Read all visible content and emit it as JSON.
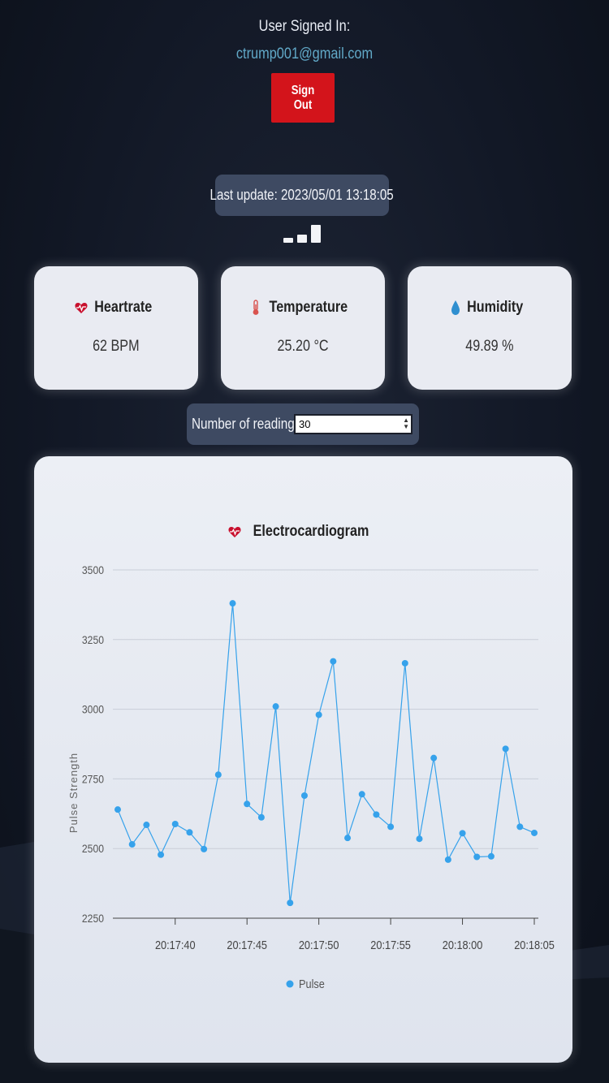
{
  "header": {
    "signed_in_label": "User Signed In:",
    "email": "ctrump001@gmail.com",
    "sign_out_label": "Sign Out"
  },
  "status": {
    "last_update": "Last update: 2023/05/01 13:18:05",
    "signal_icon": "signal-strength-icon"
  },
  "cards": [
    {
      "title": "Heartrate",
      "value": "62 BPM",
      "icon": "heart-pulse-icon",
      "icon_color": "#c8102e"
    },
    {
      "title": "Temperature",
      "value": "25.20 °C",
      "icon": "thermometer-icon",
      "icon_color": "#d9534f"
    },
    {
      "title": "Humidity",
      "value": "49.89 %",
      "icon": "water-drop-icon",
      "icon_color": "#2f8fd0"
    }
  ],
  "readings": {
    "label": "Number of readings:",
    "value": "30"
  },
  "chart_title": "Electrocardiogram",
  "chart_data": {
    "type": "line",
    "title": "Electrocardiogram",
    "ylabel": "Pulse Strength",
    "xlabel": "",
    "ylim": [
      2250,
      3500
    ],
    "yticks": [
      2250,
      2500,
      2750,
      3000,
      3250,
      3500
    ],
    "x_tick_labels": [
      "20:17:40",
      "20:17:45",
      "20:17:50",
      "20:17:55",
      "20:18:00",
      "20:18:05"
    ],
    "x_tick_seconds": [
      40,
      45,
      50,
      55,
      60,
      65
    ],
    "x_start_second": 36,
    "x_step_seconds": 1,
    "legend_position": "bottom",
    "grid": true,
    "series": [
      {
        "name": "Pulse",
        "color": "#36a2eb",
        "values": [
          2640,
          2515,
          2585,
          2478,
          2588,
          2558,
          2498,
          2765,
          3380,
          2660,
          2612,
          3010,
          2305,
          2690,
          2980,
          3172,
          2538,
          2695,
          2622,
          2578,
          3165,
          2535,
          2825,
          2460,
          2555,
          2470,
          2472,
          2858,
          2578,
          2556
        ]
      }
    ]
  }
}
